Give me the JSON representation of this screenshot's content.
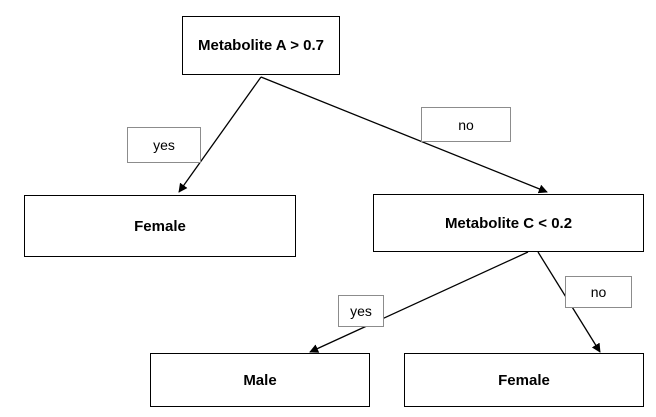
{
  "nodes": {
    "root": "Metabolite A > 0.7",
    "left": "Female",
    "right": "Metabolite C < 0.2",
    "bottom_left": "Male",
    "bottom_right": "Female"
  },
  "edges": {
    "root_left": "yes",
    "root_right": "no",
    "right_bottom_left": "yes",
    "right_bottom_right": "no"
  },
  "colors": {
    "line": "#000000",
    "label_border": "#8c8c8c"
  }
}
